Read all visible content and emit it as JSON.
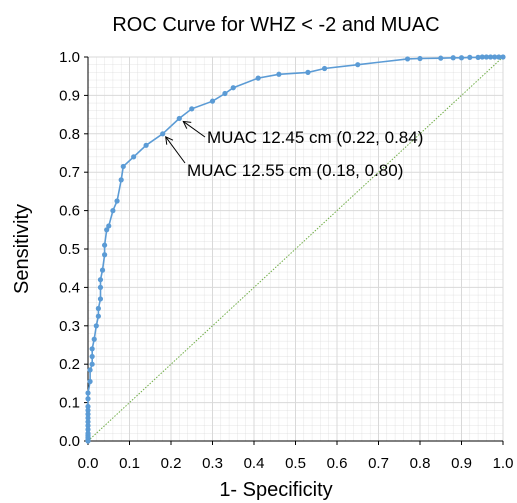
{
  "chart_data": {
    "type": "line",
    "title": "ROC Curve for WHZ < -2 and MUAC",
    "xlabel": "1- Specificity",
    "ylabel": "Sensitivity",
    "xlim": [
      0,
      1
    ],
    "ylim": [
      0,
      1
    ],
    "x_ticks": [
      "0.0",
      "0.1",
      "0.2",
      "0.3",
      "0.4",
      "0.5",
      "0.6",
      "0.7",
      "0.8",
      "0.9",
      "1.0"
    ],
    "y_ticks": [
      "0.0",
      "0.1",
      "0.2",
      "0.3",
      "0.4",
      "0.5",
      "0.6",
      "0.7",
      "0.8",
      "0.9",
      "1.0"
    ],
    "grid": true,
    "legend": "none",
    "colors": {
      "roc": "#5b9bd5",
      "diagonal": "#70ad47",
      "grid": "#d9d9d9",
      "axis": "#000000"
    },
    "series": [
      {
        "x": [
          0.0,
          0.0,
          0.0,
          0.0,
          0.0,
          0.0,
          0.0,
          0.0,
          0.0,
          0.0,
          0.0,
          0.0,
          0.0,
          0.0,
          0.005,
          0.005,
          0.01,
          0.01,
          0.01,
          0.015,
          0.02,
          0.025,
          0.025,
          0.03,
          0.03,
          0.03,
          0.035,
          0.04,
          0.04,
          0.045,
          0.05,
          0.06,
          0.07,
          0.08,
          0.085,
          0.11,
          0.14,
          0.18,
          0.22,
          0.25,
          0.3,
          0.33,
          0.35,
          0.41,
          0.46,
          0.53,
          0.57,
          0.65,
          0.77,
          0.8,
          0.85,
          0.88,
          0.9,
          0.92,
          0.94,
          0.95,
          0.96,
          0.97,
          0.98,
          0.99,
          1.0
        ],
        "y": [
          0.0,
          0.005,
          0.01,
          0.015,
          0.02,
          0.03,
          0.04,
          0.05,
          0.06,
          0.07,
          0.08,
          0.09,
          0.11,
          0.125,
          0.155,
          0.185,
          0.2,
          0.22,
          0.24,
          0.265,
          0.3,
          0.325,
          0.345,
          0.37,
          0.4,
          0.42,
          0.445,
          0.485,
          0.51,
          0.55,
          0.56,
          0.6,
          0.625,
          0.68,
          0.715,
          0.74,
          0.77,
          0.8,
          0.84,
          0.865,
          0.885,
          0.905,
          0.92,
          0.945,
          0.955,
          0.96,
          0.97,
          0.98,
          0.995,
          0.996,
          0.997,
          0.998,
          0.998,
          0.999,
          0.999,
          1.0,
          1.0,
          1.0,
          1.0,
          1.0,
          1.0
        ]
      }
    ],
    "reference_line": {
      "x": [
        0,
        1
      ],
      "y": [
        0,
        1
      ],
      "style": "dotted"
    },
    "annotations": [
      {
        "text": "MUAC 12.45 cm (0.22, 0.84)",
        "x": 0.22,
        "y": 0.84
      },
      {
        "text": "MUAC 12.55 cm (0.18, 0.80)",
        "x": 0.18,
        "y": 0.8
      }
    ]
  }
}
